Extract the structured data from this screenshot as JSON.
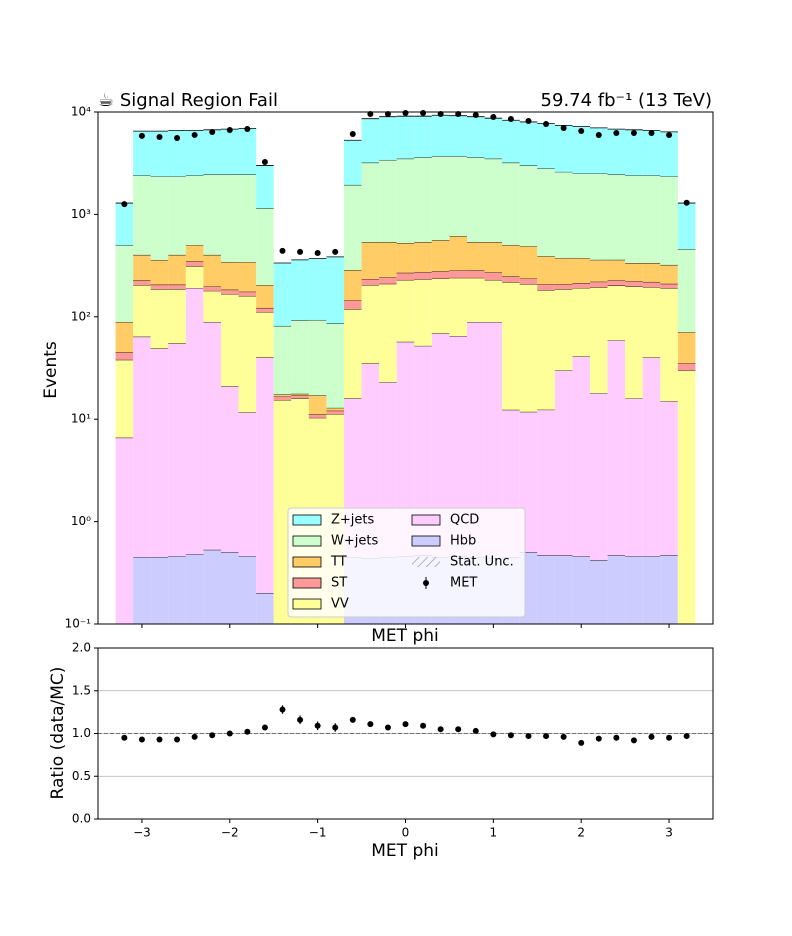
{
  "chart_data": [
    {
      "type": "stacked_histogram",
      "title": "☕ Signal Region Fail",
      "subtitle": "59.74 fb⁻¹ (13 TeV)",
      "xlabel": "MET phi",
      "ylabel": "Events",
      "log_y": true,
      "xlim": [
        -3.5,
        3.5
      ],
      "ylim": [
        0.1,
        10000
      ],
      "yticks": [
        {
          "value": 0.1,
          "label": "10⁻¹"
        },
        {
          "value": 1,
          "label": "10⁰"
        },
        {
          "value": 10,
          "label": "10¹"
        },
        {
          "value": 100,
          "label": "10²"
        },
        {
          "value": 1000,
          "label": "10³"
        },
        {
          "value": 10000,
          "label": "10⁴"
        }
      ],
      "legend": "lower center",
      "bins": [
        -3.3,
        -3.1,
        -2.9,
        -2.7,
        -2.5,
        -2.3,
        -2.1,
        -1.9,
        -1.7,
        -1.5,
        -1.3,
        -1.1,
        -0.9,
        -0.7,
        -0.5,
        -0.3,
        -0.1,
        0.1,
        0.3,
        0.5,
        0.7,
        0.9,
        1.1,
        1.3,
        1.5,
        1.7,
        1.9,
        2.1,
        2.3,
        2.5,
        2.7,
        2.9,
        3.1,
        3.3
      ],
      "series": [
        {
          "name": "Z+jets",
          "color": "#99ffff",
          "values": [
            790,
            4100,
            4150,
            4250,
            4200,
            4250,
            4350,
            4450,
            1850,
            254,
            267,
            277,
            299,
            3360,
            5400,
            5600,
            5600,
            5500,
            5600,
            5500,
            5400,
            5200,
            5100,
            5000,
            4900,
            4800,
            4700,
            4500,
            4350,
            4300,
            4200,
            4050,
            833
          ]
        },
        {
          "name": "W+jets",
          "color": "#ccffcc",
          "values": [
            411,
            1998,
            1991,
            1948,
            1899,
            2048,
            2107,
            2107,
            946,
            64,
            75,
            76,
            73,
            1654,
            2663,
            2863,
            2975,
            3063,
            3140,
            3086,
            3063,
            2963,
            2699,
            2510,
            2410,
            2225,
            2125,
            2140,
            2090,
            2065,
            2065,
            2029,
            386
          ]
        },
        {
          "name": "TT",
          "color": "#ffcc66",
          "values": [
            44,
            176,
            153,
            196,
            153,
            205,
            159,
            167,
            82,
            0.8,
            0.7,
            6,
            0.8,
            142,
            303,
            295,
            256,
            263,
            282,
            330,
            252,
            266,
            253,
            254,
            183,
            167,
            162,
            140,
            133,
            112,
            116,
            111,
            36
          ]
        },
        {
          "name": "ST",
          "color": "#ff9999",
          "values": [
            7,
            22,
            20,
            20,
            35,
            18,
            17,
            16,
            11,
            1.2,
            1,
            0.8,
            0.9,
            25,
            30,
            32,
            40,
            42,
            42,
            44,
            45,
            42,
            30,
            28,
            25,
            22,
            22,
            26,
            25,
            25,
            24,
            20,
            5
          ]
        },
        {
          "name": "VV",
          "color": "#ffff99",
          "values": [
            31.4,
            140,
            137,
            131,
            122,
            90,
            146,
            148,
            71,
            15.4,
            16,
            10.3,
            11.2,
            103,
            169,
            187,
            172,
            180,
            167,
            175,
            151,
            140,
            206,
            196,
            170,
            156,
            150,
            176,
            143,
            182,
            155,
            175,
            30
          ]
        },
        {
          "name": "QCD",
          "color": "#ffccff",
          "values": [
            6.6,
            63.5,
            48.5,
            54.5,
            190.5,
            88.5,
            20.5,
            11.2,
            39.8,
            0,
            0,
            0,
            0,
            15.5,
            34.5,
            22.5,
            56.5,
            51.5,
            68.5,
            64.5,
            88.5,
            88.5,
            11.9,
            11.3,
            11.9,
            29.5,
            40.5,
            17.5,
            58.5,
            15.5,
            39.5,
            14.5,
            0
          ]
        },
        {
          "name": "Hbb",
          "color": "#ccccff",
          "values": [
            0,
            0.45,
            0.45,
            0.46,
            0.48,
            0.53,
            0.5,
            0.46,
            0.2,
            0,
            0,
            0,
            0,
            0.45,
            0.44,
            0.45,
            0.46,
            0.47,
            0.45,
            0.46,
            0.45,
            0.44,
            0.45,
            0.5,
            0.47,
            0.47,
            0.46,
            0.42,
            0.47,
            0.46,
            0.46,
            0.47,
            0
          ]
        }
      ],
      "stat_unc": {
        "name": "Stat. Unc."
      },
      "data": {
        "name": "MET",
        "color": "#000000",
        "values": [
          1260,
          5840,
          5700,
          5570,
          5970,
          6380,
          6670,
          6820,
          3250,
          440,
          430,
          420,
          430,
          6100,
          9560,
          9560,
          9780,
          9780,
          9560,
          9560,
          9350,
          8930,
          8540,
          8170,
          7640,
          6980,
          6520,
          5960,
          6240,
          6240,
          6240,
          5960,
          1300
        ]
      }
    },
    {
      "type": "errorbar",
      "xlabel": "MET phi",
      "ylabel": "Ratio (data/MC)",
      "color": "#000000",
      "grid": "y",
      "hline": 1,
      "xlim": [
        -3.5,
        3.5
      ],
      "ylim": [
        0,
        2
      ],
      "xticks": [
        {
          "value": -3,
          "label": "−3"
        },
        {
          "value": -2,
          "label": "−2"
        },
        {
          "value": -1,
          "label": "−1"
        },
        0,
        1,
        2,
        3
      ],
      "yticks": [
        {
          "value": 0,
          "label": "0.0"
        },
        0.5,
        {
          "value": 1,
          "label": "1.0"
        },
        1.5,
        {
          "value": 2,
          "label": "2.0"
        }
      ],
      "x": [
        -3.2,
        -3.0,
        -2.8,
        -2.6,
        -2.4,
        -2.2,
        -2.0,
        -1.8,
        -1.6,
        -1.4,
        -1.2,
        -1.0,
        -0.8,
        -0.6,
        -0.4,
        -0.2,
        0,
        0.2,
        0.4,
        0.6,
        0.8,
        1.0,
        1.2,
        1.4,
        1.6,
        1.8,
        2.0,
        2.2,
        2.4,
        2.6,
        2.8,
        3.0,
        3.2
      ],
      "values": [
        0.95,
        0.93,
        0.93,
        0.93,
        0.96,
        0.98,
        1.0,
        1.02,
        1.07,
        1.28,
        1.16,
        1.09,
        1.07,
        1.16,
        1.11,
        1.07,
        1.11,
        1.09,
        1.05,
        1.05,
        1.03,
        0.99,
        0.98,
        0.97,
        0.97,
        0.96,
        0.89,
        0.94,
        0.95,
        0.92,
        0.96,
        0.95,
        0.97
      ],
      "errors": [
        0.03,
        0.013,
        0.013,
        0.013,
        0.013,
        0.013,
        0.012,
        0.012,
        0.018,
        0.05,
        0.05,
        0.05,
        0.05,
        0.015,
        0.011,
        0.011,
        0.011,
        0.011,
        0.011,
        0.011,
        0.011,
        0.011,
        0.011,
        0.012,
        0.012,
        0.012,
        0.012,
        0.013,
        0.013,
        0.013,
        0.013,
        0.013,
        0.03
      ]
    }
  ]
}
